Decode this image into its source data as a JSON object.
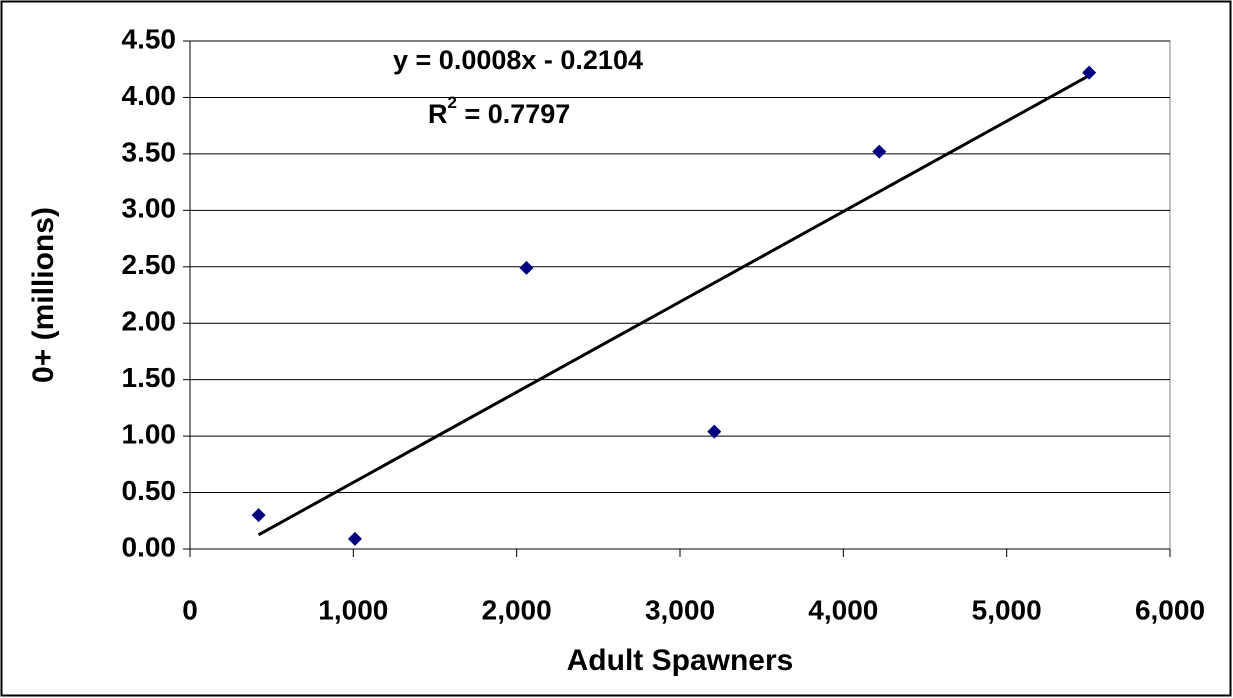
{
  "chart_data": {
    "type": "scatter",
    "x_label": "Adult Spawners",
    "y_label": "0+ (millions)",
    "x": [
      420,
      1010,
      2060,
      3210,
      4220,
      5505
    ],
    "values": [
      0.3,
      0.09,
      2.49,
      1.04,
      3.52,
      4.22
    ],
    "color": "#000080",
    "xlim": [
      0,
      6000
    ],
    "ylim": [
      0,
      4.5
    ],
    "xticks": [
      0,
      {
        "value": 1000,
        "label": "1,000"
      },
      {
        "value": 2000,
        "label": "2,000"
      },
      {
        "value": 3000,
        "label": "3,000"
      },
      {
        "value": 4000,
        "label": "4,000"
      },
      {
        "value": 5000,
        "label": "5,000"
      },
      {
        "value": 6000,
        "label": "6,000"
      }
    ],
    "yticks": [
      {
        "value": 0,
        "label": "0.00"
      },
      {
        "value": 0.5,
        "label": "0.50"
      },
      {
        "value": 1,
        "label": "1.00"
      },
      {
        "value": 1.5,
        "label": "1.50"
      },
      {
        "value": 2,
        "label": "2.00"
      },
      {
        "value": 2.5,
        "label": "2.50"
      },
      {
        "value": 3,
        "label": "3.00"
      },
      {
        "value": 3.5,
        "label": "3.50"
      },
      {
        "value": 4,
        "label": "4.00"
      },
      {
        "value": 4.5,
        "label": "4.50"
      }
    ],
    "grid": true,
    "trendline": {
      "slope": 0.0008,
      "intercept": -0.2104,
      "equation": "y = 0.0008x - 0.2104",
      "r2_label": {
        "text": "R",
        "superscript": "2",
        "suffix": " = 0.7797"
      },
      "color": "#000000"
    }
  }
}
